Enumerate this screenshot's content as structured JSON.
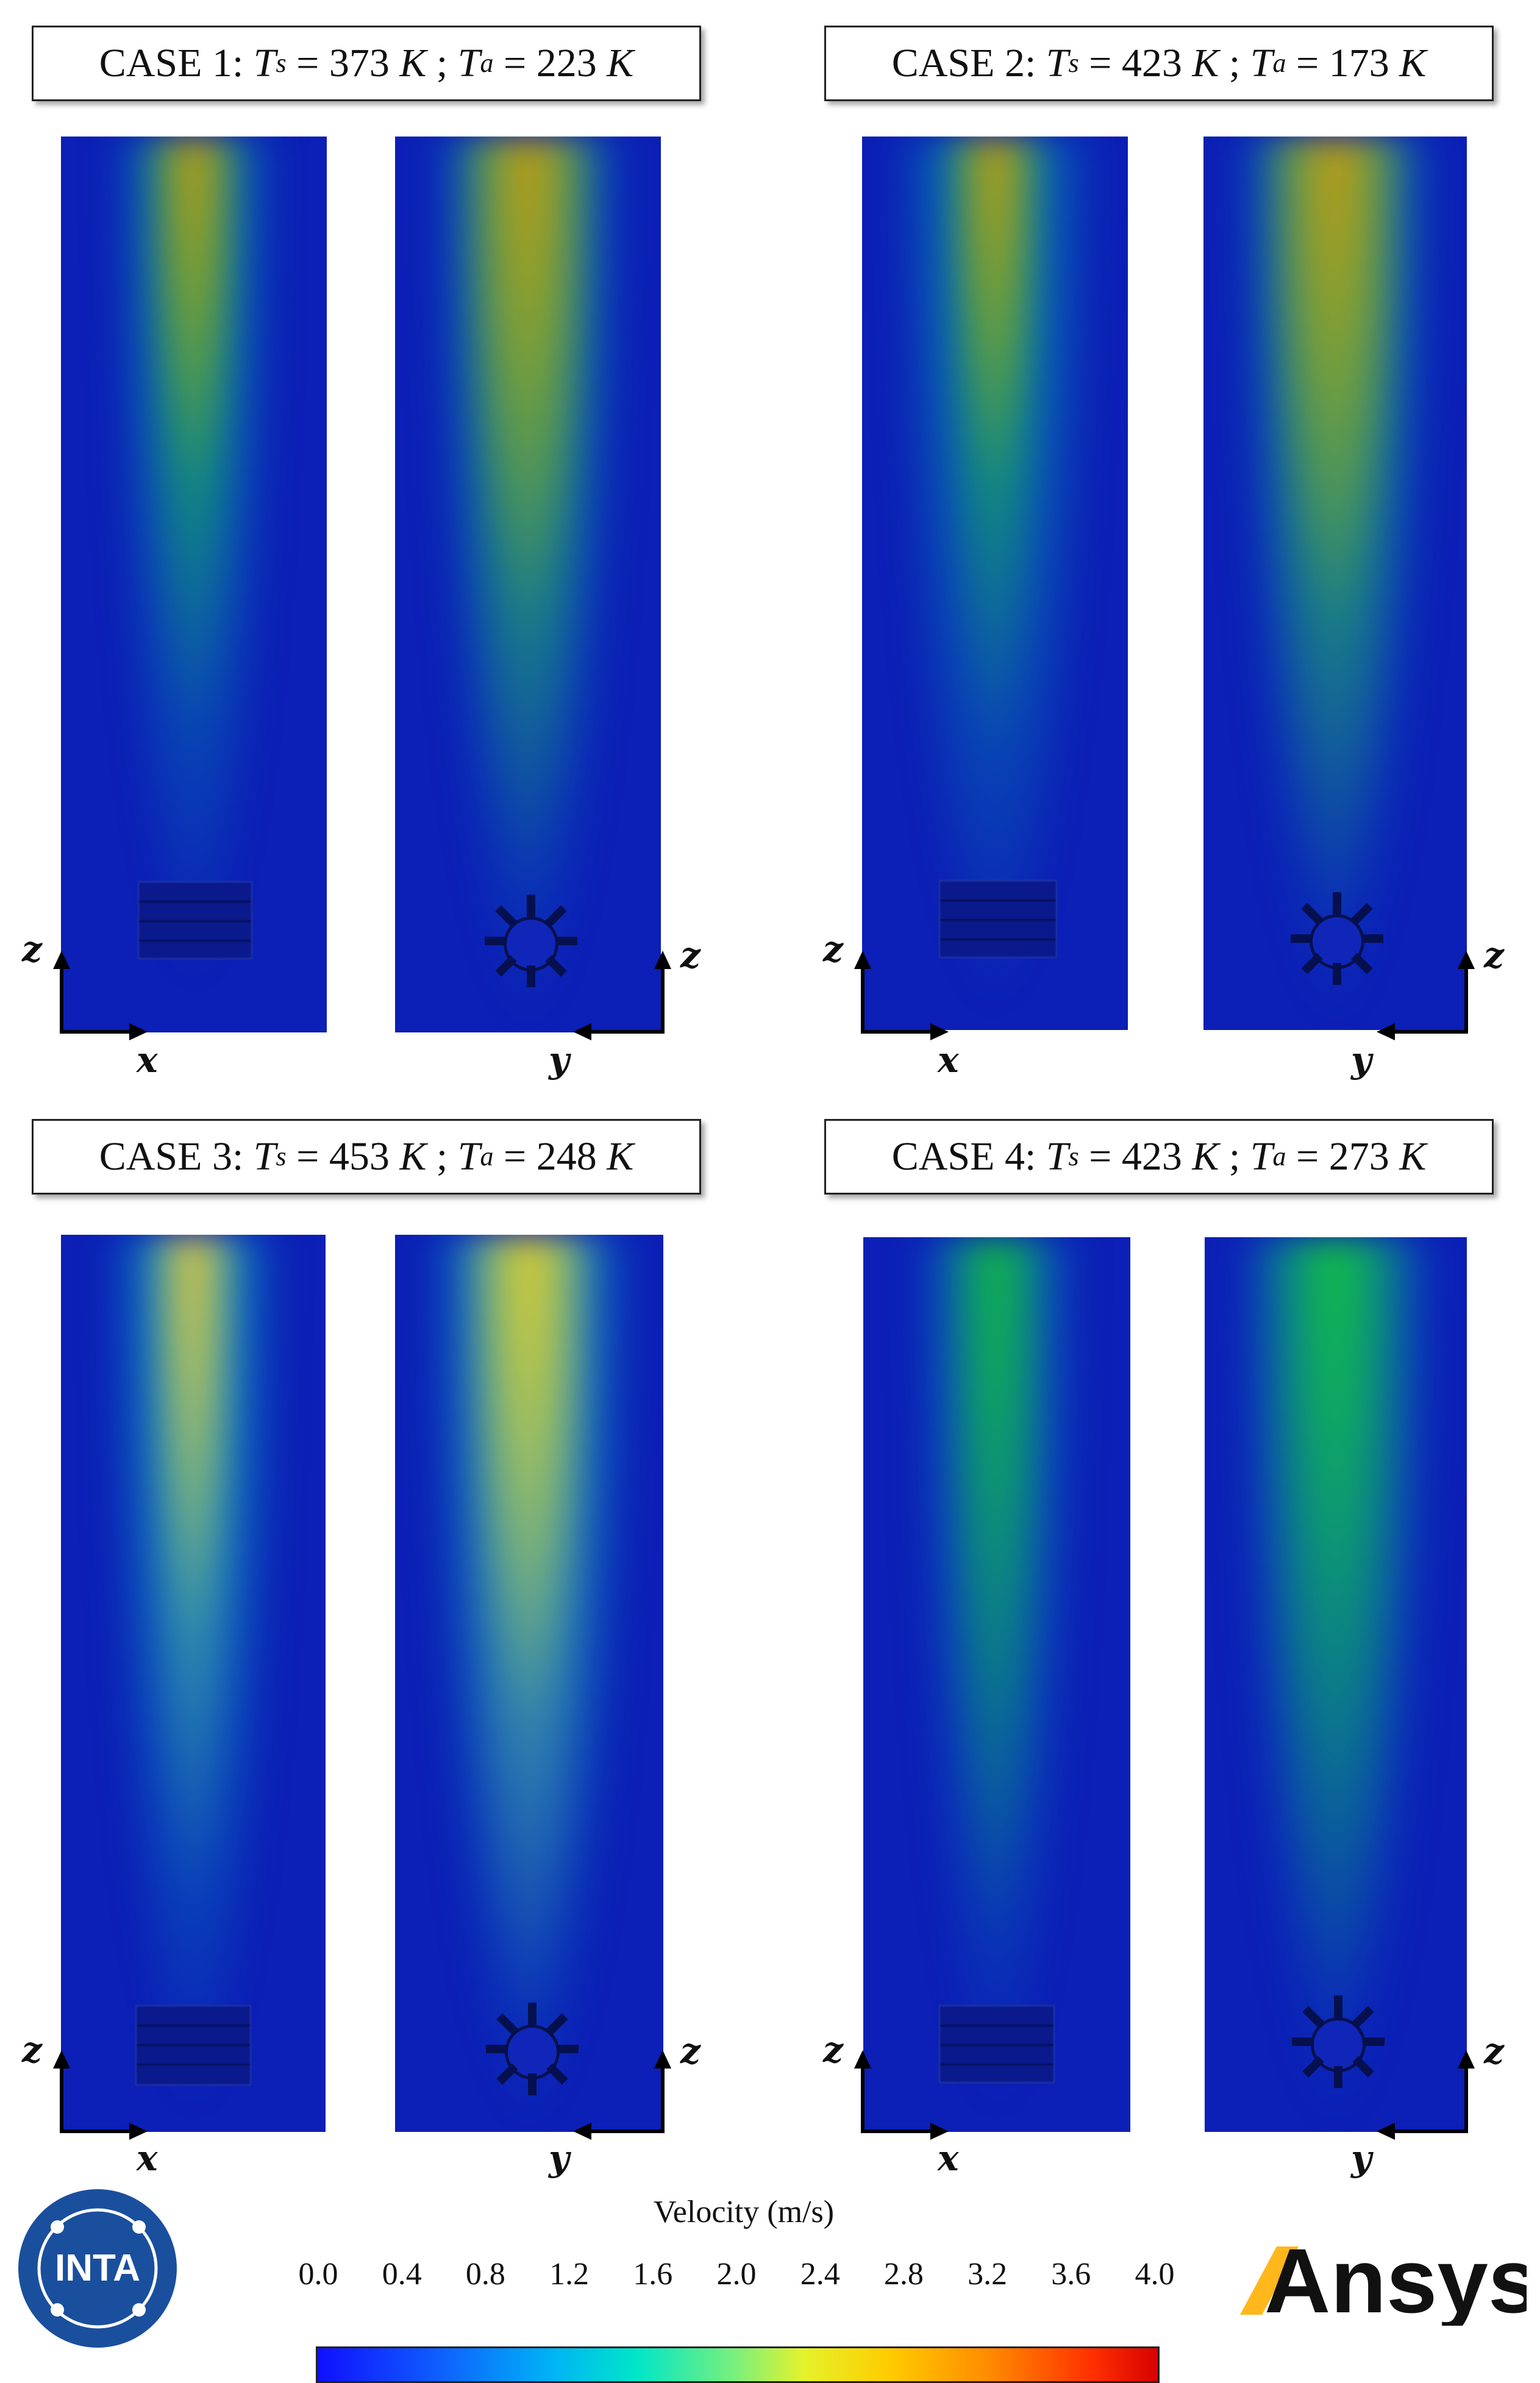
{
  "cases": [
    {
      "id": "case1",
      "prefix": "CASE 1:",
      "ts": "373",
      "ta": "223"
    },
    {
      "id": "case2",
      "prefix": "CASE 2:",
      "ts": "423",
      "ta": "173"
    },
    {
      "id": "case3",
      "prefix": "CASE 3:",
      "ts": "453",
      "ta": "248"
    },
    {
      "id": "case4",
      "prefix": "CASE 4:",
      "ts": "423",
      "ta": "273"
    }
  ],
  "temp_symbols": {
    "T": "T",
    "s": "s",
    "a": "a",
    "eq": "=",
    "unit": "K",
    "sep": ";"
  },
  "axes": {
    "z": "z",
    "x": "x",
    "y": "y"
  },
  "colorbar": {
    "title": "Velocity (m/s)",
    "ticks": [
      "0.0",
      "0.4",
      "0.8",
      "1.2",
      "1.6",
      "2.0",
      "2.4",
      "2.8",
      "3.2",
      "3.6",
      "4.0"
    ],
    "colors": [
      "#1010ff",
      "#0f5cff",
      "#00b4f5",
      "#00e6c8",
      "#7ef07a",
      "#e6f22a",
      "#ffcc00",
      "#ff8a00",
      "#ff3200",
      "#d80000"
    ]
  },
  "logos": {
    "inta": "INTA",
    "ansys": "Ansys"
  }
}
